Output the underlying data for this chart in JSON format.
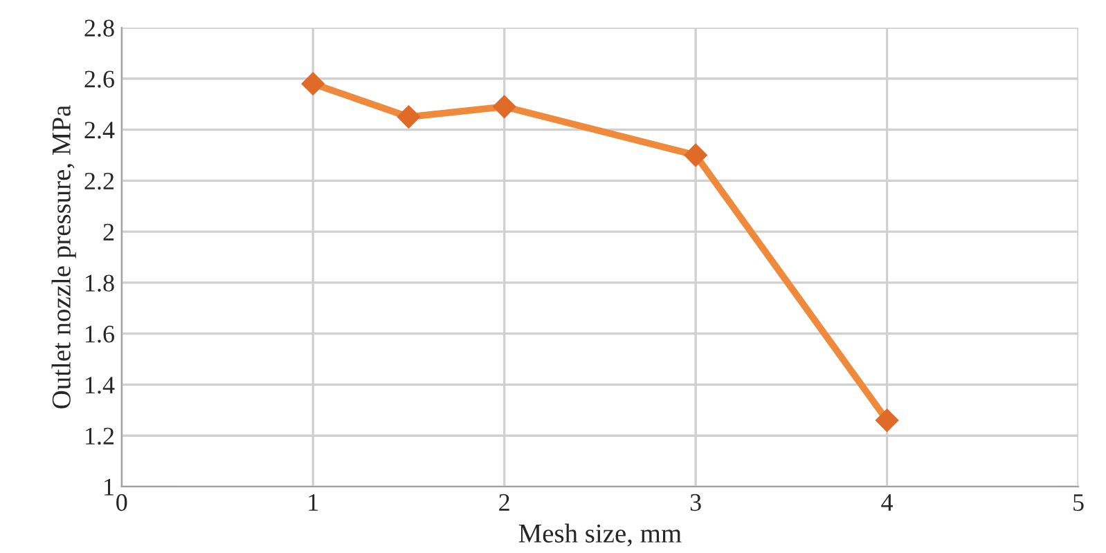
{
  "chart_data": {
    "type": "line",
    "xlabel": "Mesh size, mm",
    "ylabel": "Outlet nozzle pressure, MPa",
    "x": [
      1,
      1.5,
      2,
      3,
      4
    ],
    "series": [
      {
        "color": "#ef8a3c",
        "values": [
          2.58,
          2.45,
          2.49,
          2.3,
          1.26
        ]
      }
    ],
    "xlim": [
      0,
      5
    ],
    "xticks": [
      0,
      1,
      2,
      3,
      4,
      5
    ],
    "ylim": [
      1,
      2.8
    ],
    "yticks": [
      1,
      1.2,
      1.4,
      1.6,
      1.8,
      2,
      2.2,
      2.4,
      2.6,
      2.8
    ],
    "grid": true,
    "marker": "diamond",
    "line_style": "solid"
  }
}
